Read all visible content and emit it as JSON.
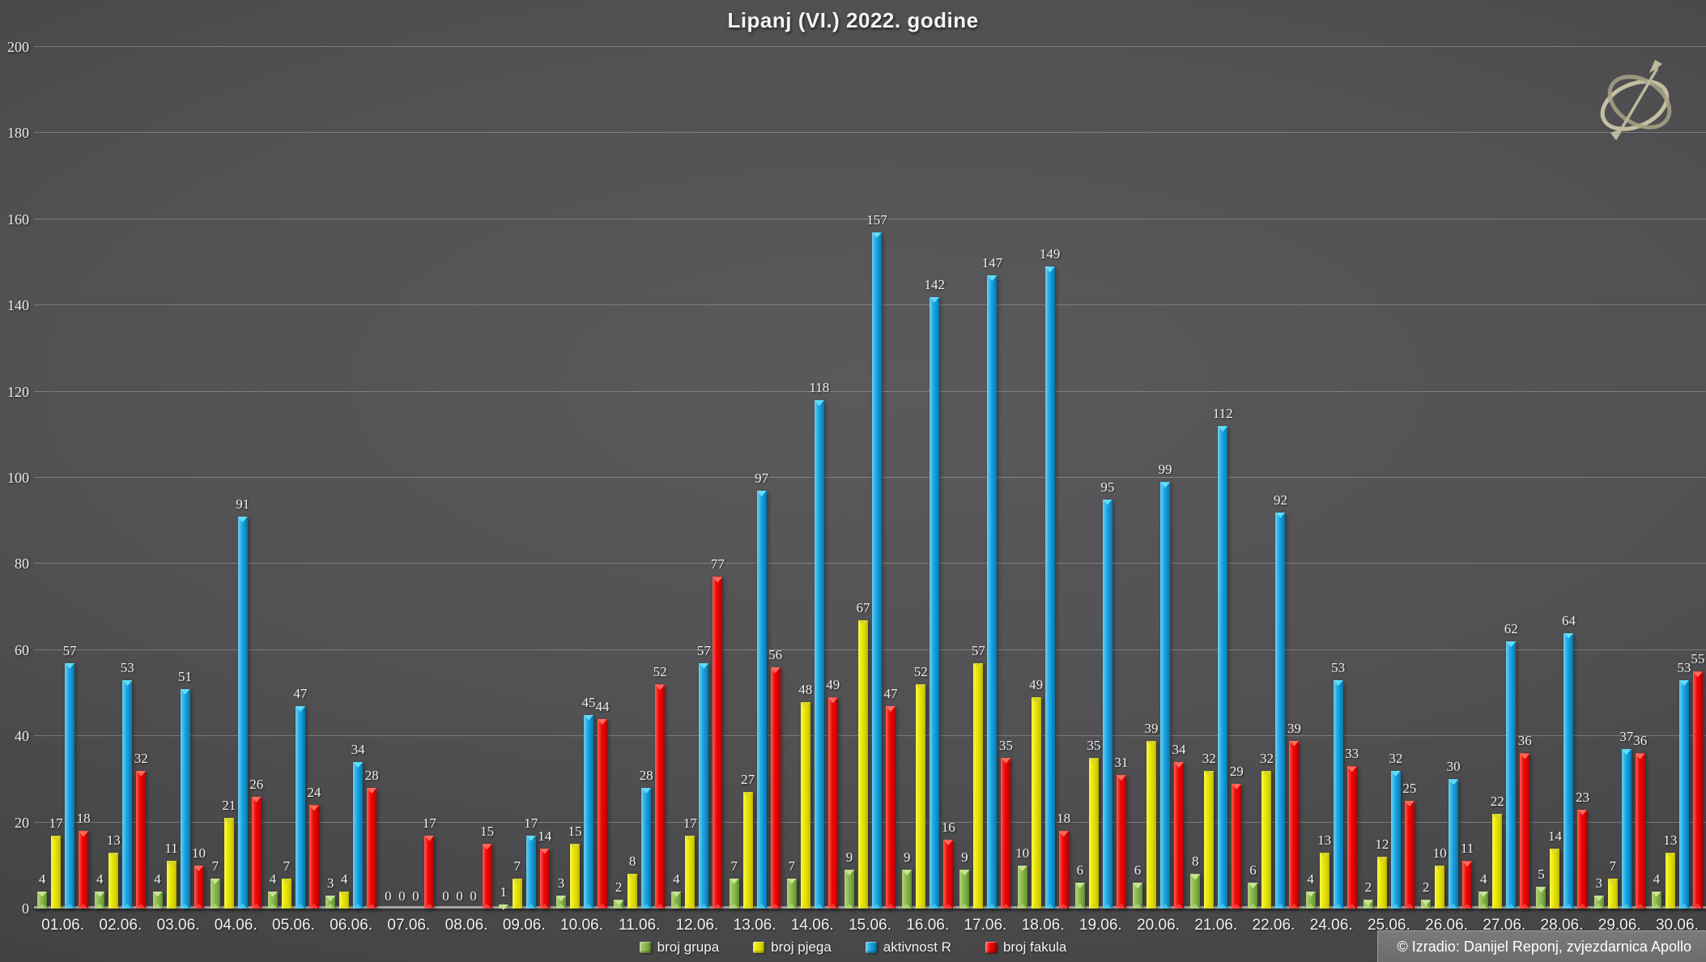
{
  "title": "Lipanj (VI.) 2022. godine",
  "copyright": "© Izradio: Danijel Reponj, zvjezdarnica Apollo",
  "chart_data": {
    "type": "bar",
    "title": "Lipanj (VI.) 2022. godine",
    "grid": true,
    "legend_position": "bottom",
    "data_labels": true,
    "axis": {
      "ymin": 0,
      "ymax": 200,
      "step": 20
    },
    "yticks": [
      0,
      20,
      40,
      60,
      80,
      100,
      120,
      140,
      160,
      180,
      200
    ],
    "categories": [
      "01.06.",
      "02.06.",
      "03.06.",
      "04.06.",
      "05.06.",
      "06.06.",
      "07.06.",
      "08.06.",
      "09.06.",
      "10.06.",
      "11.06.",
      "12.06.",
      "13.06.",
      "14.06.",
      "15.06.",
      "16.06.",
      "17.06.",
      "18.06.",
      "19.06.",
      "20.06.",
      "21.06.",
      "22.06.",
      "24.06.",
      "25.06.",
      "26.06.",
      "27.06.",
      "28.06.",
      "29.06.",
      "30.06."
    ],
    "series": [
      {
        "name": "broj grupa",
        "color": "#8fbc51",
        "values": [
          4,
          4,
          4,
          7,
          4,
          3,
          0,
          0,
          1,
          3,
          2,
          4,
          7,
          7,
          9,
          9,
          9,
          10,
          6,
          6,
          8,
          6,
          4,
          2,
          2,
          4,
          5,
          3,
          4
        ]
      },
      {
        "name": "broj pjega",
        "color": "#eae700",
        "values": [
          17,
          13,
          11,
          21,
          7,
          4,
          0,
          0,
          7,
          15,
          8,
          17,
          27,
          48,
          67,
          52,
          57,
          49,
          35,
          39,
          32,
          32,
          13,
          12,
          10,
          22,
          14,
          7,
          13
        ]
      },
      {
        "name": "aktivnost R",
        "color": "#1ea9e4",
        "values": [
          57,
          53,
          51,
          91,
          47,
          34,
          0,
          0,
          17,
          45,
          28,
          57,
          97,
          118,
          157,
          142,
          147,
          149,
          95,
          99,
          112,
          92,
          53,
          32,
          30,
          62,
          64,
          37,
          53
        ]
      },
      {
        "name": "broj fakula",
        "color": "#f20707",
        "values": [
          18,
          32,
          10,
          26,
          24,
          28,
          17,
          15,
          14,
          44,
          52,
          77,
          56,
          49,
          47,
          16,
          35,
          18,
          31,
          34,
          29,
          39,
          33,
          25,
          11,
          36,
          23,
          36,
          55
        ]
      }
    ]
  }
}
